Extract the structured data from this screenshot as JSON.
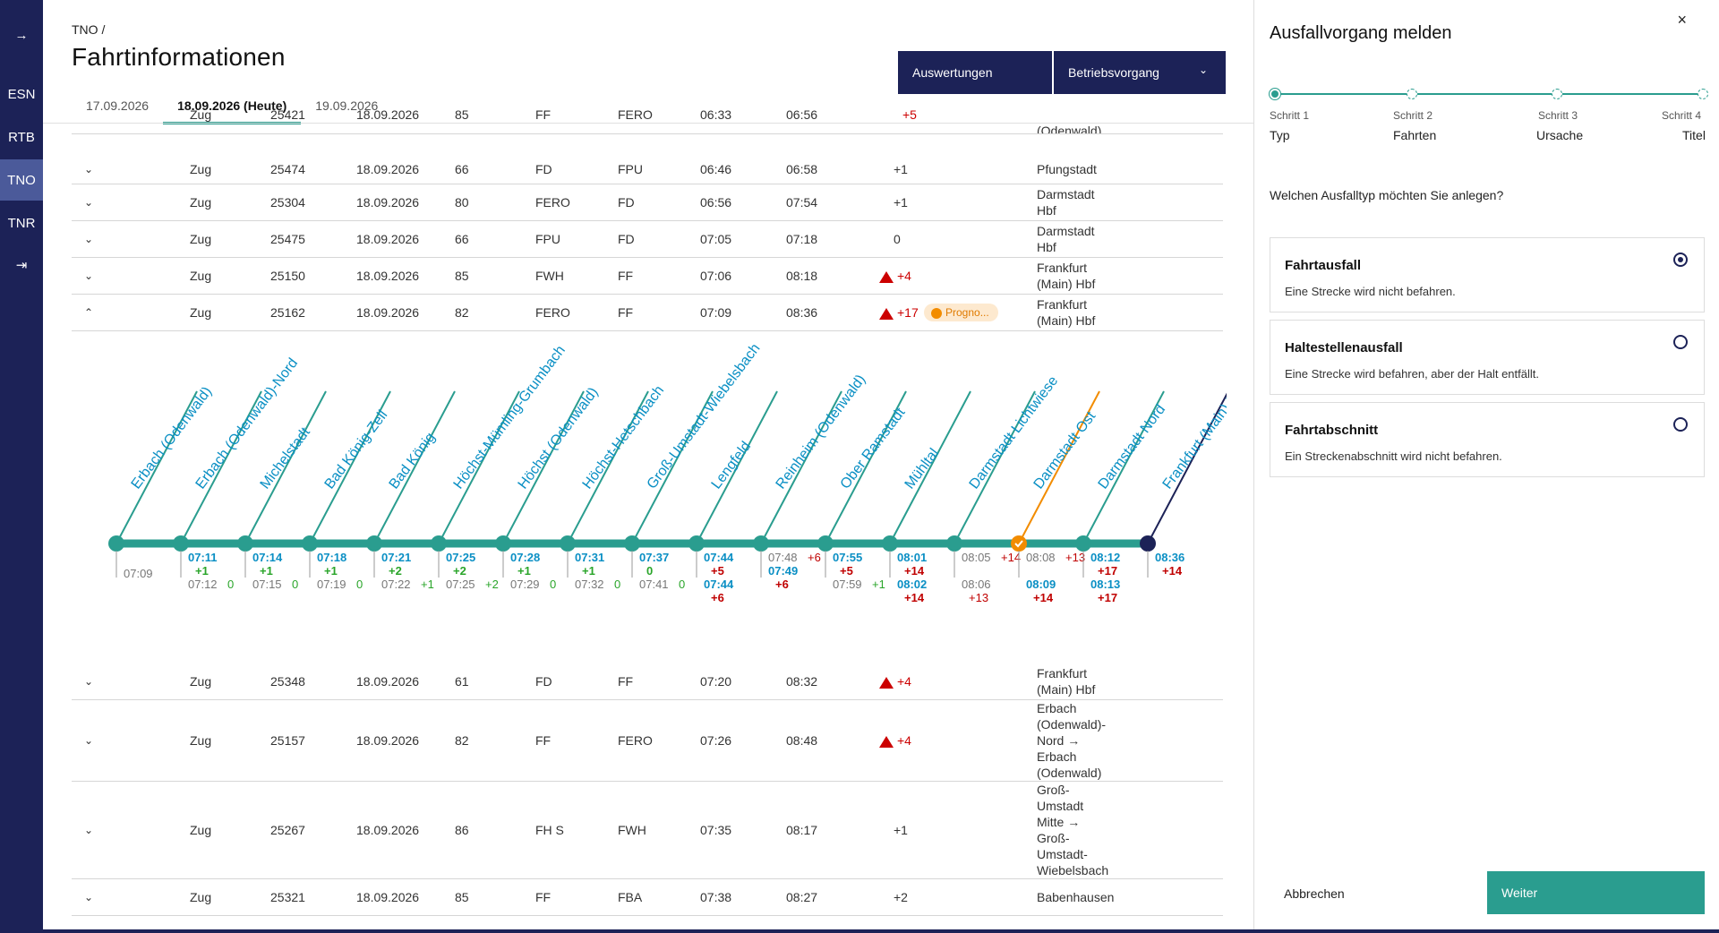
{
  "sidebar": {
    "expand_icon": "→",
    "items": [
      "ESN",
      "RTB",
      "TNO",
      "TNR"
    ],
    "logout_icon": "⇥"
  },
  "header": {
    "breadcrumb": "TNO  /",
    "title": "Fahrtinformationen",
    "tabs": [
      "17.09.2026",
      "18.09.2026 (Heute)",
      "19.09.2026"
    ],
    "btn_auswertungen": "Auswertungen",
    "btn_betriebsvorgang": "Betriebsvorgang"
  },
  "rows": [
    {
      "type": "Zug",
      "nr": "25474",
      "date": "18.09.2026",
      "line": "66",
      "from": "FD",
      "to": "FPU",
      "dep": "06:46",
      "arr": "06:58",
      "delay": "+1",
      "dest": "Pfungstadt"
    },
    {
      "type": "Zug",
      "nr": "25304",
      "date": "18.09.2026",
      "line": "80",
      "from": "FERO",
      "to": "FD",
      "dep": "06:56",
      "arr": "07:54",
      "delay": "+1",
      "dest": "Darmstadt\nHbf"
    },
    {
      "type": "Zug",
      "nr": "25475",
      "date": "18.09.2026",
      "line": "66",
      "from": "FPU",
      "to": "FD",
      "dep": "07:05",
      "arr": "07:18",
      "delay": "0",
      "dest": "Darmstadt\nHbf"
    },
    {
      "type": "Zug",
      "nr": "25150",
      "date": "18.09.2026",
      "line": "85",
      "from": "FWH",
      "to": "FF",
      "dep": "07:06",
      "arr": "08:18",
      "delay": "+4",
      "dest": "Frankfurt\n(Main) Hbf"
    },
    {
      "type": "Zug",
      "nr": "25162",
      "date": "18.09.2026",
      "line": "82",
      "from": "FERO",
      "to": "FF",
      "dep": "07:09",
      "arr": "08:36",
      "delay": "+17",
      "dest": "Frankfurt\n(Main) Hbf",
      "badge": "Progno..."
    },
    {
      "type": "Zug",
      "nr": "25348",
      "date": "18.09.2026",
      "line": "61",
      "from": "FD",
      "to": "FF",
      "dep": "07:20",
      "arr": "08:32",
      "delay": "+4",
      "dest": "Frankfurt\n(Main) Hbf"
    },
    {
      "type": "Zug",
      "nr": "25157",
      "date": "18.09.2026",
      "line": "82",
      "from": "FF",
      "to": "FERO",
      "dep": "07:26",
      "arr": "08:48",
      "delay": "+4",
      "dest": "Erbach\n(Odenwald)-\nNord →\nErbach\n(Odenwald)"
    },
    {
      "type": "Zug",
      "nr": "25267",
      "date": "18.09.2026",
      "line": "86",
      "from": "FH S",
      "to": "FWH",
      "dep": "07:35",
      "arr": "08:17",
      "delay": "+1",
      "dest": "Groß-\nUmstadt\nMitte →\nGroß-\nUmstadt-\nWiebelsbach"
    },
    {
      "type": "Zug",
      "nr": "25321",
      "date": "18.09.2026",
      "line": "85",
      "from": "FF",
      "to": "FBA",
      "dep": "07:38",
      "arr": "08:27",
      "delay": "+2",
      "dest": "Babenhausen"
    }
  ],
  "partial_row": {
    "type": "Zug",
    "nr": "25421",
    "date": "18.09.2026",
    "line": "85",
    "from": "FF",
    "to": "FERO",
    "dep": "06:33",
    "arr": "06:56",
    "delay": "+5",
    "dest": "(Odenwald)"
  },
  "timeline": {
    "stops": [
      {
        "name": "Erbach (Odenwald)",
        "t1": "",
        "d1": "",
        "t2": "07:09",
        "d2": "",
        "t3": "",
        "d3": ""
      },
      {
        "name": "Erbach (Odenwald)-Nord",
        "t1": "07:11",
        "d1": "+1",
        "t2": "07:12",
        "d2": "0",
        "t3": "",
        "d3": ""
      },
      {
        "name": "Michelstadt",
        "t1": "07:14",
        "d1": "+1",
        "t2": "07:15",
        "d2": "0",
        "t3": "",
        "d3": ""
      },
      {
        "name": "Bad König-Zell",
        "t1": "07:18",
        "d1": "+1",
        "t2": "07:19",
        "d2": "0",
        "t3": "",
        "d3": ""
      },
      {
        "name": "Bad König",
        "t1": "07:21",
        "d1": "+2",
        "t2": "07:22",
        "d2": "+1",
        "t3": "",
        "d3": ""
      },
      {
        "name": "Höchst-Mümling-Grumbach",
        "t1": "07:25",
        "d1": "+2",
        "t2": "07:25",
        "d2": "+2",
        "t3": "",
        "d3": ""
      },
      {
        "name": "Höchst (Odenwald)",
        "t1": "07:28",
        "d1": "+1",
        "t2": "07:29",
        "d2": "0",
        "t3": "",
        "d3": ""
      },
      {
        "name": "Höchst-Hetschbach",
        "t1": "07:31",
        "d1": "+1",
        "t2": "07:32",
        "d2": "0",
        "t3": "",
        "d3": ""
      },
      {
        "name": "Groß-Umstadt-Wiebelsbach",
        "t1": "07:37",
        "d1": "0",
        "t2": "07:41",
        "d2": "0",
        "t3": "",
        "d3": ""
      },
      {
        "name": "Lengfeld",
        "t1": "07:44",
        "d1": "+5",
        "t2": "07:44",
        "d2": "+6",
        "t3": "",
        "d3": ""
      },
      {
        "name": "Reinheim (Odenwald)",
        "t1": "07:48",
        "d1": "+6",
        "t2": "07:49",
        "d2": "+6",
        "t3": "",
        "d3": ""
      },
      {
        "name": "Ober Ramstadt",
        "t1": "07:55",
        "d1": "+5",
        "t2": "07:59",
        "d2": "+1",
        "t3": "",
        "d3": ""
      },
      {
        "name": "Mühltal",
        "t1": "08:01",
        "d1": "+14",
        "t2": "08:02",
        "d2": "+14",
        "t3": "",
        "d3": ""
      },
      {
        "name": "Darmstadt Lichtwiese",
        "t1": "08:05",
        "d1": "+14",
        "t2": "08:06",
        "d2": "+13",
        "t3": "",
        "d3": ""
      },
      {
        "name": "Darmstadt Ost",
        "t1": "08:08",
        "d1": "+13",
        "t2": "08:09",
        "d2": "+14",
        "t3": "",
        "d3": ""
      },
      {
        "name": "Darmstadt Nord",
        "t1": "08:12",
        "d1": "+17",
        "t2": "08:13",
        "d2": "+17",
        "t3": "",
        "d3": ""
      },
      {
        "name": "Frankfurt (Main) Hbf",
        "t1": "08:36",
        "d1": "+14",
        "t2": "",
        "d2": "",
        "t3": "",
        "d3": ""
      }
    ]
  },
  "panel": {
    "title": "Ausfallvorgang melden",
    "close": "×",
    "steps": [
      {
        "label": "Schritt 1",
        "name": "Typ"
      },
      {
        "label": "Schritt 2",
        "name": "Fahrten"
      },
      {
        "label": "Schritt 3",
        "name": "Ursache"
      },
      {
        "label": "Schritt 4",
        "name": "Titel"
      }
    ],
    "question": "Welchen Ausfalltyp möchten Sie anlegen?",
    "options": [
      {
        "title": "Fahrtausfall",
        "desc": "Eine Strecke wird nicht befahren.",
        "checked": true
      },
      {
        "title": "Haltestellenausfall",
        "desc": "Eine Strecke wird befahren, aber der Halt entfällt.",
        "checked": false
      },
      {
        "title": "Fahrtabschnitt",
        "desc": "Ein Streckenabschnitt wird nicht befahren.",
        "checked": false
      }
    ],
    "cancel": "Abbrechen",
    "next": "Weiter"
  },
  "colors": {
    "navy": "#1c2257",
    "teal": "#2a9d8f",
    "blue": "#0a8fc4",
    "red": "#c00000",
    "green": "#2aa52a",
    "orange": "#f28c00"
  }
}
